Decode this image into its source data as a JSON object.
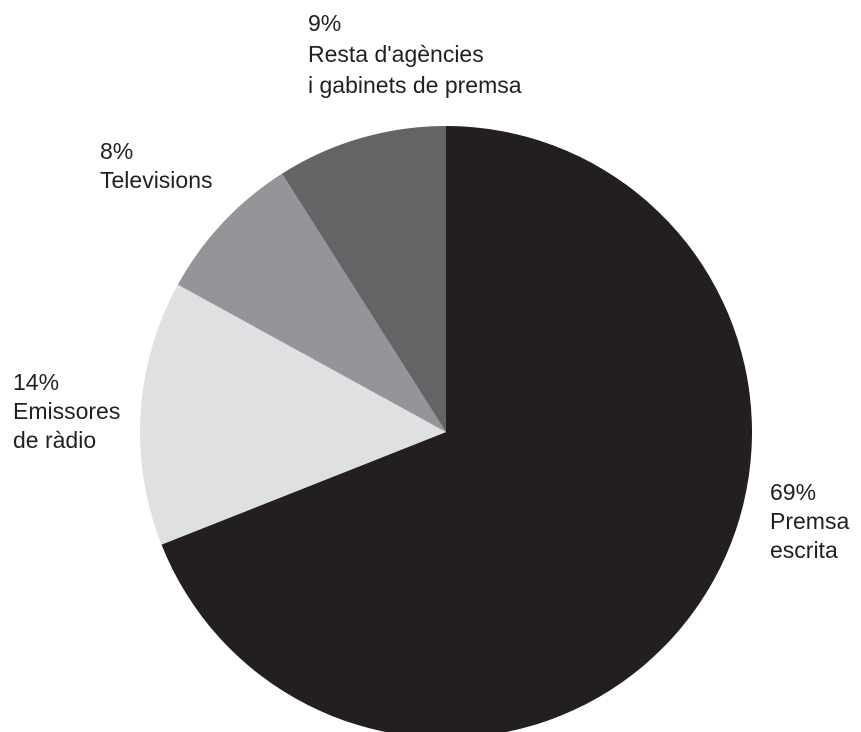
{
  "chart_data": {
    "type": "pie",
    "start_angle_deg": 90,
    "direction": "clockwise",
    "slices": [
      {
        "value": 69,
        "value_label": "69%",
        "label_lines": [
          "Premsa",
          "escrita"
        ],
        "color": "#231f20"
      },
      {
        "value": 14,
        "value_label": "14%",
        "label_lines": [
          "Emissores",
          "de ràdio"
        ],
        "color": "#dfe0e2"
      },
      {
        "value": 8,
        "value_label": "8%",
        "label_lines": [
          "Televisions"
        ],
        "color": "#939598"
      },
      {
        "value": 9,
        "value_label": "9%",
        "label_lines": [
          "Resta d'agències",
          "i gabinets de premsa"
        ],
        "color": "#636466"
      }
    ]
  }
}
